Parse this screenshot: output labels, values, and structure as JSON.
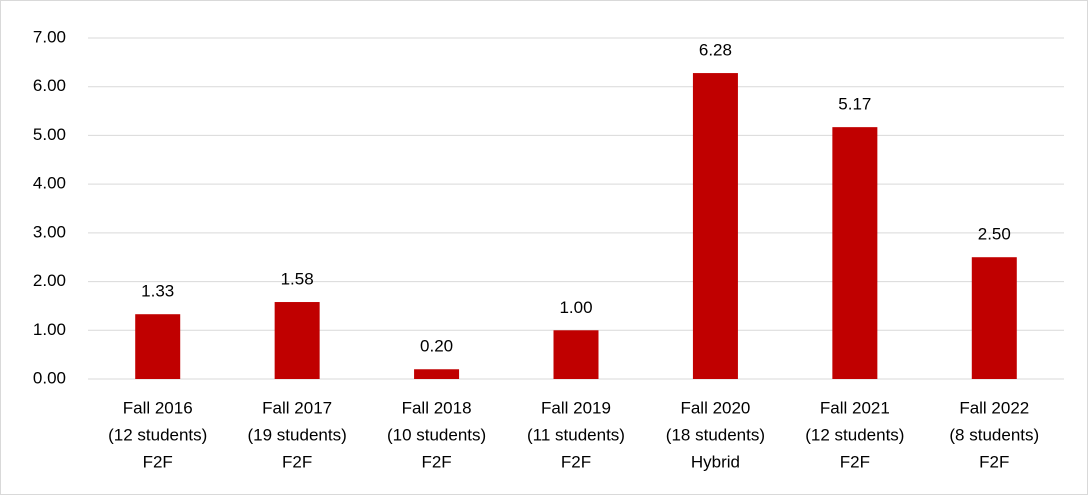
{
  "chart_data": {
    "type": "bar",
    "categories": [
      [
        "Fall 2016",
        "(12 students)",
        "F2F"
      ],
      [
        "Fall 2017",
        "(19 students)",
        "F2F"
      ],
      [
        "Fall 2018",
        "(10 students)",
        "F2F"
      ],
      [
        "Fall 2019",
        "(11 students)",
        "F2F"
      ],
      [
        "Fall 2020",
        "(18 students)",
        "Hybrid"
      ],
      [
        "Fall 2021",
        "(12 students)",
        "F2F"
      ],
      [
        "Fall 2022",
        "(8 students)",
        "F2F"
      ]
    ],
    "values": [
      1.33,
      1.58,
      0.2,
      1,
      6.28,
      5.17,
      2.5
    ],
    "value_labels": [
      "1.33",
      "1.58",
      "0.20",
      "1.00",
      "6.28",
      "5.17",
      "2.50"
    ],
    "color": "#c00000",
    "ylim": [
      0,
      7
    ],
    "yticks": [
      {
        "value": 0,
        "label": "0.00"
      },
      {
        "value": 1,
        "label": "1.00"
      },
      {
        "value": 2,
        "label": "2.00"
      },
      {
        "value": 3,
        "label": "3.00"
      },
      {
        "value": 4,
        "label": "4.00"
      },
      {
        "value": 5,
        "label": "5.00"
      },
      {
        "value": 6,
        "label": "6.00"
      },
      {
        "value": 7,
        "label": "7.00"
      }
    ],
    "grid": true
  }
}
